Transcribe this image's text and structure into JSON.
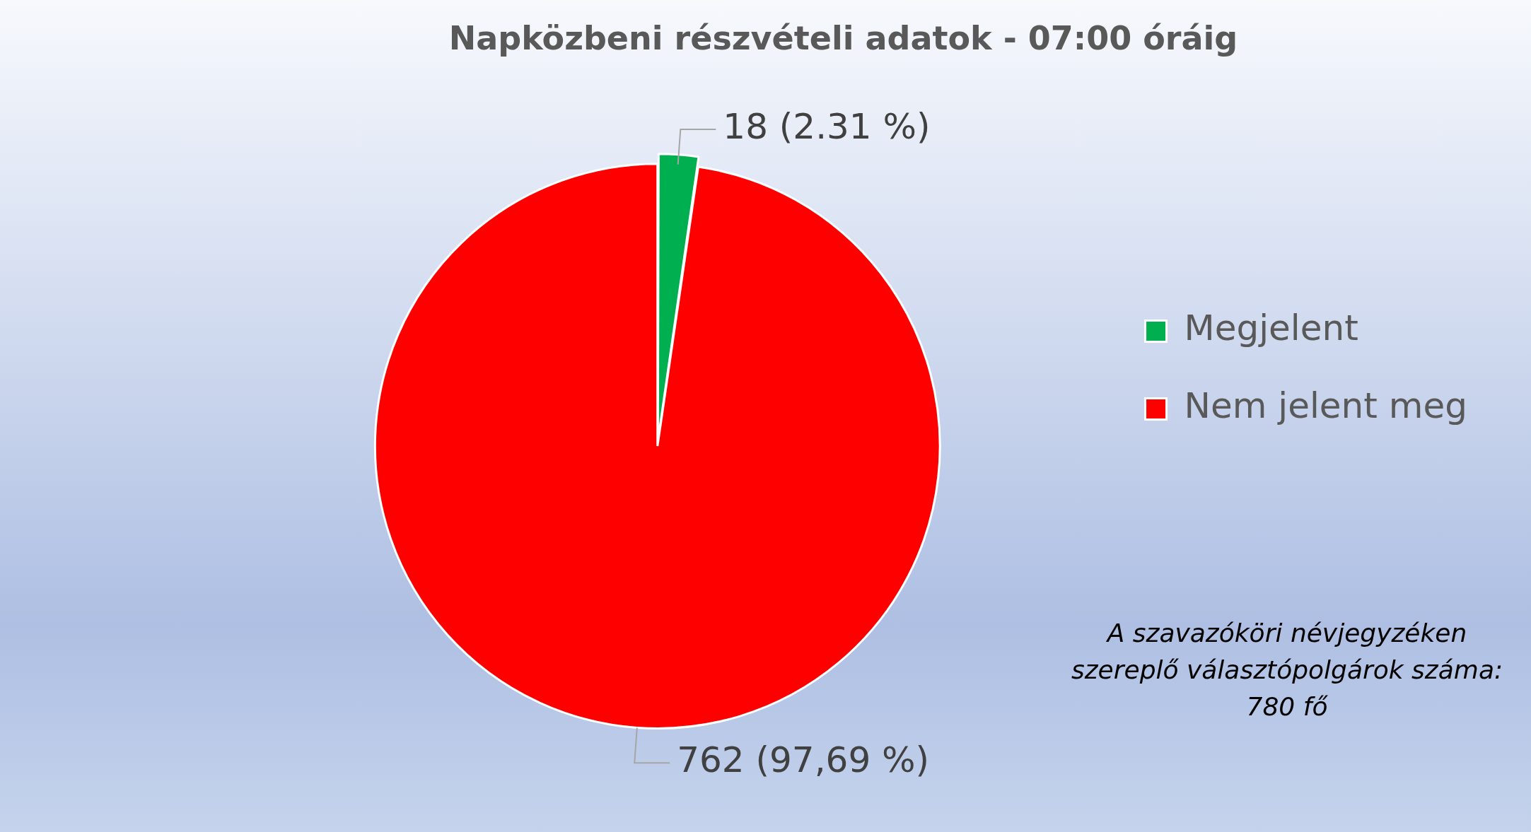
{
  "chart_data": {
    "type": "pie",
    "title": "Napközbeni részvételi adatok - 07:00 óráig",
    "categories": [
      "Megjelent",
      "Nem jelent meg"
    ],
    "values": [
      18,
      762
    ],
    "colors": [
      "#00b050",
      "#ff0000"
    ],
    "value_labels": [
      "18 (2.31 %)",
      "762 (97,69 %)"
    ],
    "legend": "right",
    "annotations": [
      "A szavazóköri névjegyzéken szereplő választópolgárok száma: 780 fő"
    ]
  }
}
